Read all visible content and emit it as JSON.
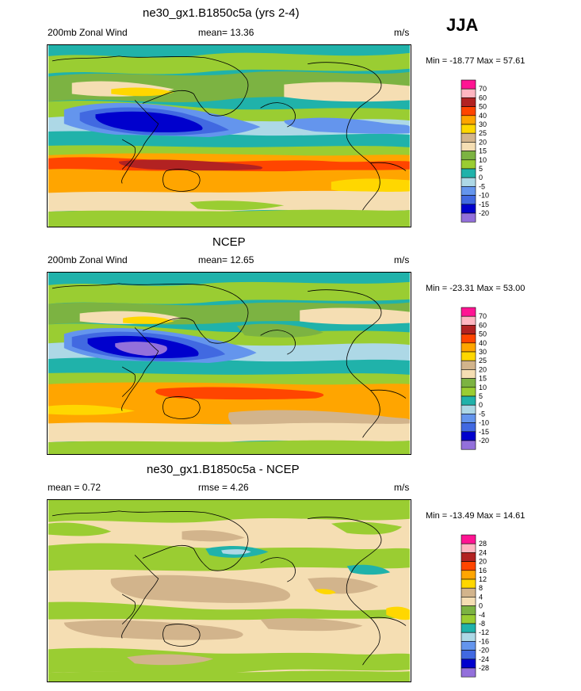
{
  "season": "JJA",
  "palette_wind": [
    "#9370db",
    "#0000cd",
    "#4169e1",
    "#6495ed",
    "#add8e6",
    "#20b2aa",
    "#9acd32",
    "#7cb342",
    "#f5deb3",
    "#d2b48c",
    "#ffd700",
    "#ffa500",
    "#ff4500",
    "#b22222",
    "#ffb6c1",
    "#ff1493"
  ],
  "palette_diff": [
    "#9370db",
    "#0000cd",
    "#4169e1",
    "#6495ed",
    "#add8e6",
    "#20b2aa",
    "#9acd32",
    "#7cb342",
    "#f5deb3",
    "#d2b48c",
    "#ffd700",
    "#ffa500",
    "#ff4500",
    "#b22222",
    "#ffb6c1",
    "#ff1493"
  ],
  "panels": [
    {
      "title": "ne30_gx1.B1850c5a (yrs 2-4)",
      "left_label": "200mb Zonal Wind",
      "center_label": "mean=  13.36",
      "units": "m/s",
      "minmax": "Min = -18.77 Max =  57.61",
      "legend_labels": [
        "70",
        "60",
        "50",
        "40",
        "30",
        "25",
        "20",
        "15",
        "10",
        "5",
        "0",
        "-5",
        "-10",
        "-15",
        "-20"
      ]
    },
    {
      "title": "NCEP",
      "left_label": "200mb Zonal Wind",
      "center_label": "mean=  12.65",
      "units": "m/s",
      "minmax": "Min = -23.31 Max =  53.00",
      "legend_labels": [
        "70",
        "60",
        "50",
        "40",
        "30",
        "25",
        "20",
        "15",
        "10",
        "5",
        "0",
        "-5",
        "-10",
        "-15",
        "-20"
      ]
    },
    {
      "title": "ne30_gx1.B1850c5a - NCEP",
      "left_label": "mean =   0.72",
      "center_label": "rmse =   4.26",
      "units": "m/s",
      "minmax": "Min = -13.49 Max =  14.61",
      "legend_labels": [
        "28",
        "24",
        "20",
        "16",
        "12",
        "8",
        "4",
        "0",
        "-4",
        "-8",
        "-12",
        "-16",
        "-20",
        "-24",
        "-28"
      ]
    }
  ]
}
